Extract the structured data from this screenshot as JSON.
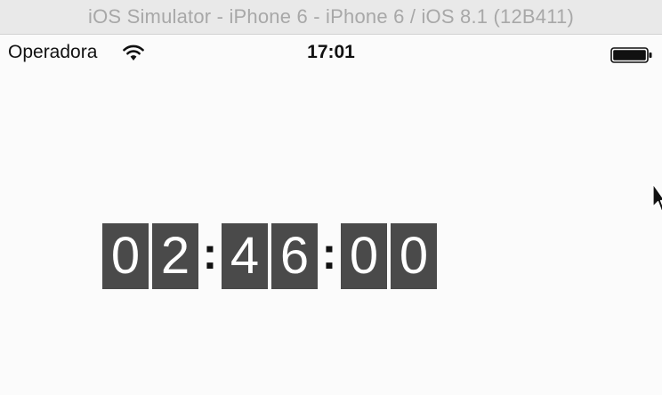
{
  "window": {
    "title": "iOS Simulator - iPhone 6 - iPhone 6 / iOS 8.1 (12B411)"
  },
  "status_bar": {
    "carrier": "Operadora",
    "time": "17:01",
    "wifi_icon": "wifi-icon",
    "battery_icon": "battery-full-icon"
  },
  "countdown": {
    "hours": [
      "0",
      "2"
    ],
    "minutes": [
      "4",
      "6"
    ],
    "seconds": [
      "0",
      "0"
    ],
    "separator": ":",
    "digit_bg_color": "#4a4a4a",
    "digit_text_color": "#ffffff"
  },
  "pointer": {
    "icon": "mouse-cursor-icon"
  }
}
